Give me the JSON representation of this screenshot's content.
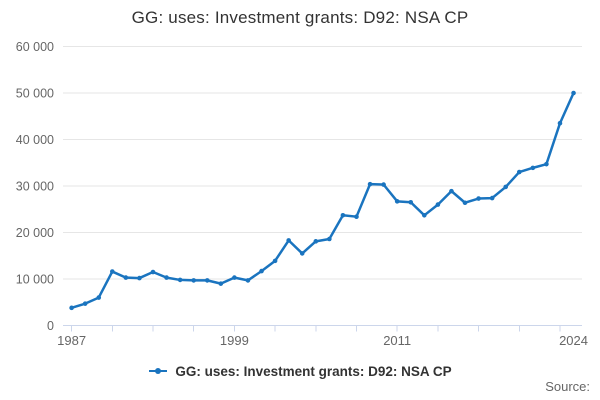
{
  "chart_data": {
    "type": "line",
    "title": "GG: uses: Investment grants: D92: NSA CP",
    "legend": "GG: uses: Investment grants: D92: NSA CP",
    "series_name": "GG: uses: Investment grants: D92: NSA CP",
    "x": [
      1987,
      1988,
      1989,
      1990,
      1991,
      1992,
      1993,
      1994,
      1995,
      1996,
      1997,
      1998,
      1999,
      2000,
      2001,
      2002,
      2003,
      2004,
      2005,
      2006,
      2007,
      2008,
      2009,
      2010,
      2011,
      2012,
      2013,
      2014,
      2015,
      2016,
      2017,
      2018,
      2019,
      2020,
      2021,
      2022,
      2023,
      2024
    ],
    "values": [
      3800,
      4700,
      6000,
      11600,
      10300,
      10200,
      11500,
      10300,
      9800,
      9700,
      9700,
      9000,
      10300,
      9700,
      11700,
      13900,
      18300,
      15500,
      18100,
      18600,
      23700,
      23400,
      30400,
      30300,
      26700,
      26500,
      23700,
      26000,
      28900,
      26400,
      27300,
      27400,
      29800,
      33000,
      33900,
      34700,
      43500,
      50000
    ],
    "xlabel": "",
    "ylabel": "",
    "ylim": [
      0,
      60000
    ],
    "y_ticks": [
      0,
      10000,
      20000,
      30000,
      40000,
      50000,
      60000
    ],
    "y_tick_labels": [
      "0",
      "10 000",
      "20 000",
      "30 000",
      "40 000",
      "50 000",
      "60 000"
    ],
    "x_axis_ticks_every": 3,
    "x_last_tick_year": 2023,
    "x_labeled_ticks": [
      {
        "year": 1987,
        "label": "1987"
      },
      {
        "year": 1999,
        "label": "1999"
      },
      {
        "year": 2011,
        "label": "2011"
      },
      {
        "year": 2024,
        "label": "2024"
      }
    ],
    "grid": "horizontal",
    "legend_position": "bottom-center",
    "colors": {
      "line": "#1a74bf",
      "grid": "#e6e6e6",
      "axis_line": "#ccd6eb",
      "axis_labels": "#666666",
      "title": "#333333",
      "legend_text": "#333333",
      "source_text": "#666666"
    }
  },
  "footer": {
    "source_label": "Source:"
  }
}
